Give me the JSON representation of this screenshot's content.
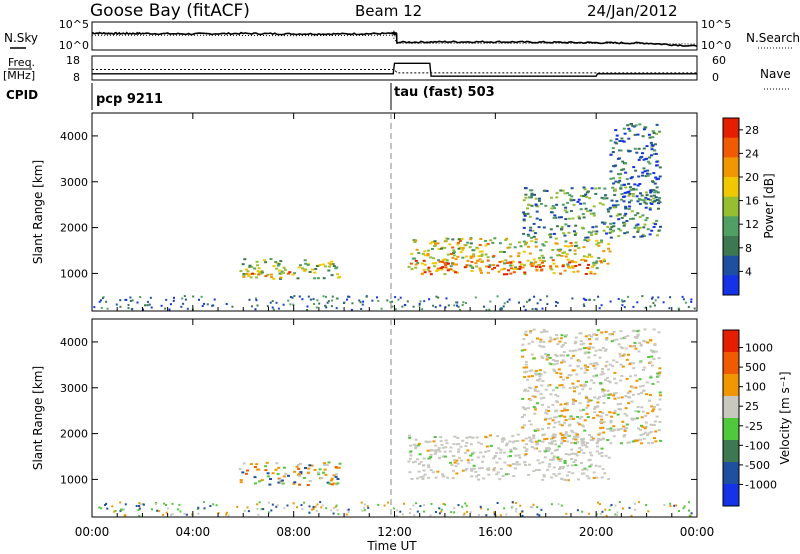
{
  "header": {
    "station": "Goose Bay (fitACF)",
    "beam": "Beam 12",
    "date": "24/Jan/2012"
  },
  "left_labels": {
    "nsky": "N.Sky",
    "freq": "Freq.",
    "freq_unit": "[MHz]",
    "cpid": "CPID"
  },
  "right_labels": {
    "nsearch": "N.Search",
    "nave": "Nave"
  },
  "cpid_labels": [
    "pcp 9211",
    "tau (fast) 503"
  ],
  "colors": {
    "power": [
      "#1432e6",
      "#1e50a0",
      "#3c7850",
      "#50a064",
      "#96be32",
      "#f0c800",
      "#f09600",
      "#f05a00",
      "#e61e00"
    ],
    "velocity": [
      "#1432e6",
      "#1e50a0",
      "#3c7850",
      "#50c83c",
      "#c8c8c0",
      "#f09600",
      "#f05a00",
      "#e61e00"
    ]
  },
  "chart_data": [
    {
      "type": "line",
      "name": "noise-panel",
      "left_ticks": [
        "10^5",
        "10^0"
      ],
      "right_ticks": [
        "10^5",
        "10^0"
      ],
      "series": [
        {
          "name": "N.Sky",
          "x": [
            0,
            1,
            2,
            4,
            6,
            8,
            10,
            11.9,
            12.1,
            14,
            16,
            18,
            20,
            22,
            24
          ],
          "values": [
            3.4,
            3.3,
            3.3,
            3.2,
            3.3,
            3.2,
            3.2,
            3.3,
            1.3,
            1.4,
            1.4,
            1.3,
            1.2,
            1.1,
            0.4
          ]
        },
        {
          "name": "N.Search",
          "x": [
            0,
            4,
            8,
            11.9,
            12.1,
            18,
            24
          ],
          "values": [
            2.9,
            2.9,
            2.8,
            2.9,
            1.1,
            1.1,
            0.9
          ]
        }
      ]
    },
    {
      "type": "line",
      "name": "freq-panel",
      "left_ticks": [
        "18",
        "8"
      ],
      "right_ticks": [
        "60",
        "0"
      ],
      "series": [
        {
          "name": "Freq.",
          "x": [
            0,
            12,
            12.1,
            24
          ],
          "values": [
            12.5,
            12.5,
            10.9,
            10.9
          ]
        },
        {
          "name": "Nave",
          "x": [
            0,
            11.95,
            12,
            13.4,
            13.45,
            20,
            20.05,
            24
          ],
          "values": [
            15,
            15,
            45,
            45,
            8,
            8,
            15,
            15
          ]
        }
      ]
    },
    {
      "type": "heatmap",
      "name": "power",
      "ylabel": "Slant Range [km]",
      "y_ticks": [
        "1000",
        "2000",
        "3000",
        "4000"
      ],
      "ylim": [
        180,
        4500
      ],
      "colorbar_label": "Power [dB]",
      "colorbar_ticks": [
        "4",
        "8",
        "12",
        "16",
        "20",
        "24",
        "28"
      ],
      "colorbar_range": [
        0,
        30
      ],
      "features": [
        {
          "x": [
            5.8,
            9.8
          ],
          "y": [
            900,
            1350
          ],
          "level": 0.45
        },
        {
          "x": [
            6.3,
            7.8
          ],
          "y": [
            900,
            1050
          ],
          "level": 0.75
        },
        {
          "x": [
            12.5,
            20.5
          ],
          "y": [
            1100,
            1800
          ],
          "level": 0.55
        },
        {
          "x": [
            12.8,
            20.0
          ],
          "y": [
            1000,
            1300
          ],
          "level": 0.8
        },
        {
          "x": [
            17.0,
            22.5
          ],
          "y": [
            1800,
            2900
          ],
          "level": 0.3
        },
        {
          "x": [
            20.5,
            22.5
          ],
          "y": [
            2500,
            4300
          ],
          "level": 0.2
        }
      ]
    },
    {
      "type": "heatmap",
      "name": "velocity",
      "ylabel": "Slant Range [km]",
      "y_ticks": [
        "1000",
        "2000",
        "3000",
        "4000"
      ],
      "ylim": [
        180,
        4500
      ],
      "colorbar_label": "Velocity [m s⁻¹]",
      "colorbar_ticks": [
        "1000",
        "500",
        "100",
        "25",
        "-25",
        "-100",
        "-500",
        "-1000"
      ],
      "features": [
        {
          "x": [
            5.8,
            9.8
          ],
          "y": [
            900,
            1400
          ],
          "class": "orange-green"
        },
        {
          "x": [
            12.5,
            20.5
          ],
          "y": [
            1000,
            2000
          ],
          "class": "gray"
        },
        {
          "x": [
            17.0,
            22.5
          ],
          "y": [
            1800,
            4300
          ],
          "class": "gray-orange"
        }
      ]
    }
  ],
  "xaxis": {
    "xlabel": "Time UT",
    "ticks": [
      "00:00",
      "04:00",
      "08:00",
      "12:00",
      "16:00",
      "20:00",
      "00:00"
    ],
    "xlim": [
      0,
      24
    ]
  }
}
